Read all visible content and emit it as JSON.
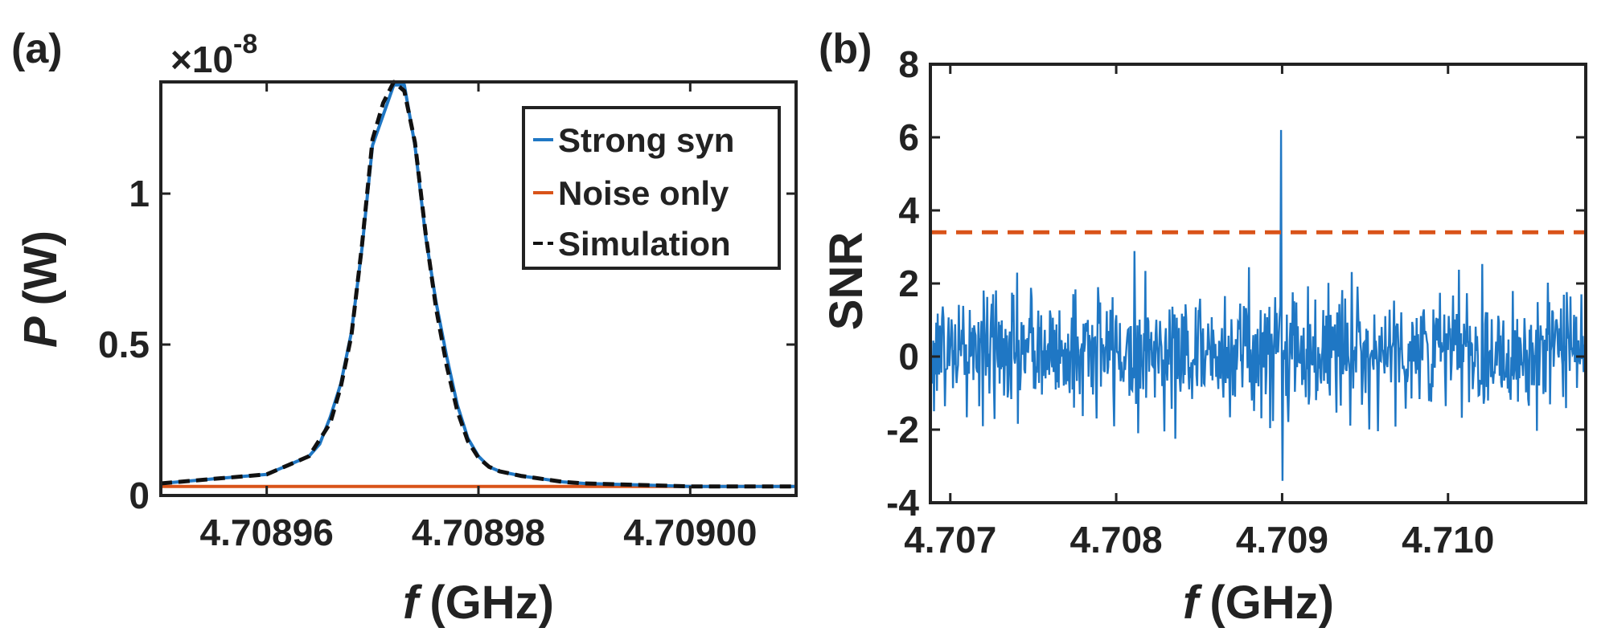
{
  "chart_data": [
    {
      "panel": "(a)",
      "type": "line",
      "title": "",
      "exponent_label": "×10",
      "exponent_power": "-8",
      "xlabel_italic": "f",
      "xlabel_unit": "(GHz)",
      "ylabel_italic": "P",
      "ylabel_unit": "(W)",
      "xlim": [
        4.70895,
        4.70901
      ],
      "ylim": [
        0,
        1.37
      ],
      "xticks": [
        4.70896,
        4.70898,
        4.709
      ],
      "xtick_labels": [
        "4.70896",
        "4.70898",
        "4.70900"
      ],
      "yticks": [
        0,
        0.5,
        1
      ],
      "ytick_labels": [
        "0",
        "0.5",
        "1"
      ],
      "legend_position": "top-right",
      "series": [
        {
          "name": "Strong syn",
          "color": "#1f77c4",
          "style": "solid",
          "x": [
            4.70895,
            4.708955,
            4.70896,
            4.708962,
            4.708964,
            4.708965,
            4.708966,
            4.708967,
            4.708968,
            4.708969,
            4.70897,
            4.708971,
            4.708972,
            4.708973,
            4.708974,
            4.708975,
            4.708976,
            4.708977,
            4.708978,
            4.708979,
            4.70898,
            4.708981,
            4.708982,
            4.708984,
            4.708986,
            4.708988,
            4.70899,
            4.708995,
            4.709,
            4.70901
          ],
          "values": [
            0.04,
            0.055,
            0.07,
            0.1,
            0.13,
            0.17,
            0.26,
            0.37,
            0.54,
            0.82,
            1.16,
            1.26,
            1.36,
            1.36,
            1.16,
            0.86,
            0.64,
            0.46,
            0.3,
            0.19,
            0.13,
            0.095,
            0.08,
            0.065,
            0.055,
            0.045,
            0.04,
            0.035,
            0.03,
            0.03
          ]
        },
        {
          "name": "Noise only",
          "color": "#d95319",
          "style": "solid",
          "x": [
            4.70895,
            4.70901
          ],
          "values": [
            0.03,
            0.03
          ]
        },
        {
          "name": "Simulation",
          "color": "#111111",
          "style": "dashed",
          "x": [
            4.70895,
            4.708955,
            4.70896,
            4.708962,
            4.708964,
            4.708966,
            4.708967,
            4.708968,
            4.708969,
            4.70897,
            4.708971,
            4.708972,
            4.708973,
            4.708974,
            4.708975,
            4.708976,
            4.708977,
            4.708978,
            4.708979,
            4.70898,
            4.708981,
            4.708982,
            4.708984,
            4.708986,
            4.708988,
            4.70899,
            4.708995,
            4.709,
            4.70901
          ],
          "values": [
            0.04,
            0.055,
            0.07,
            0.1,
            0.13,
            0.24,
            0.36,
            0.53,
            0.83,
            1.18,
            1.3,
            1.37,
            1.34,
            1.17,
            0.87,
            0.62,
            0.43,
            0.28,
            0.18,
            0.125,
            0.095,
            0.08,
            0.065,
            0.055,
            0.045,
            0.04,
            0.035,
            0.03,
            0.03
          ]
        }
      ]
    },
    {
      "panel": "(b)",
      "type": "line",
      "title": "",
      "xlabel_italic": "f",
      "xlabel_unit": "(GHz)",
      "ylabel": "SNR",
      "xlim": [
        4.70688,
        4.71083
      ],
      "ylim": [
        -4,
        8
      ],
      "xticks": [
        4.707,
        4.708,
        4.709,
        4.71
      ],
      "xtick_labels": [
        "4.707",
        "4.708",
        "4.709",
        "4.710"
      ],
      "yticks": [
        -4,
        -2,
        0,
        2,
        4,
        6,
        8
      ],
      "ytick_labels": [
        "-4",
        "-2",
        "0",
        "2",
        "4",
        "6",
        "8"
      ],
      "threshold": {
        "value": 3.4,
        "color": "#d95319",
        "style": "dashed"
      },
      "series": [
        {
          "name": "SNR",
          "color": "#1f77c4",
          "style": "solid",
          "x_start": 4.70688,
          "x_end": 4.71083,
          "n_points": 900,
          "typical_range": [
            -1.6,
            2.0
          ],
          "extreme_low": -3.4,
          "extreme_high": 3.1,
          "peak": {
            "x": 4.708995,
            "value": 6.2
          },
          "dip": {
            "x": 4.709,
            "value": -3.4
          }
        }
      ]
    }
  ]
}
